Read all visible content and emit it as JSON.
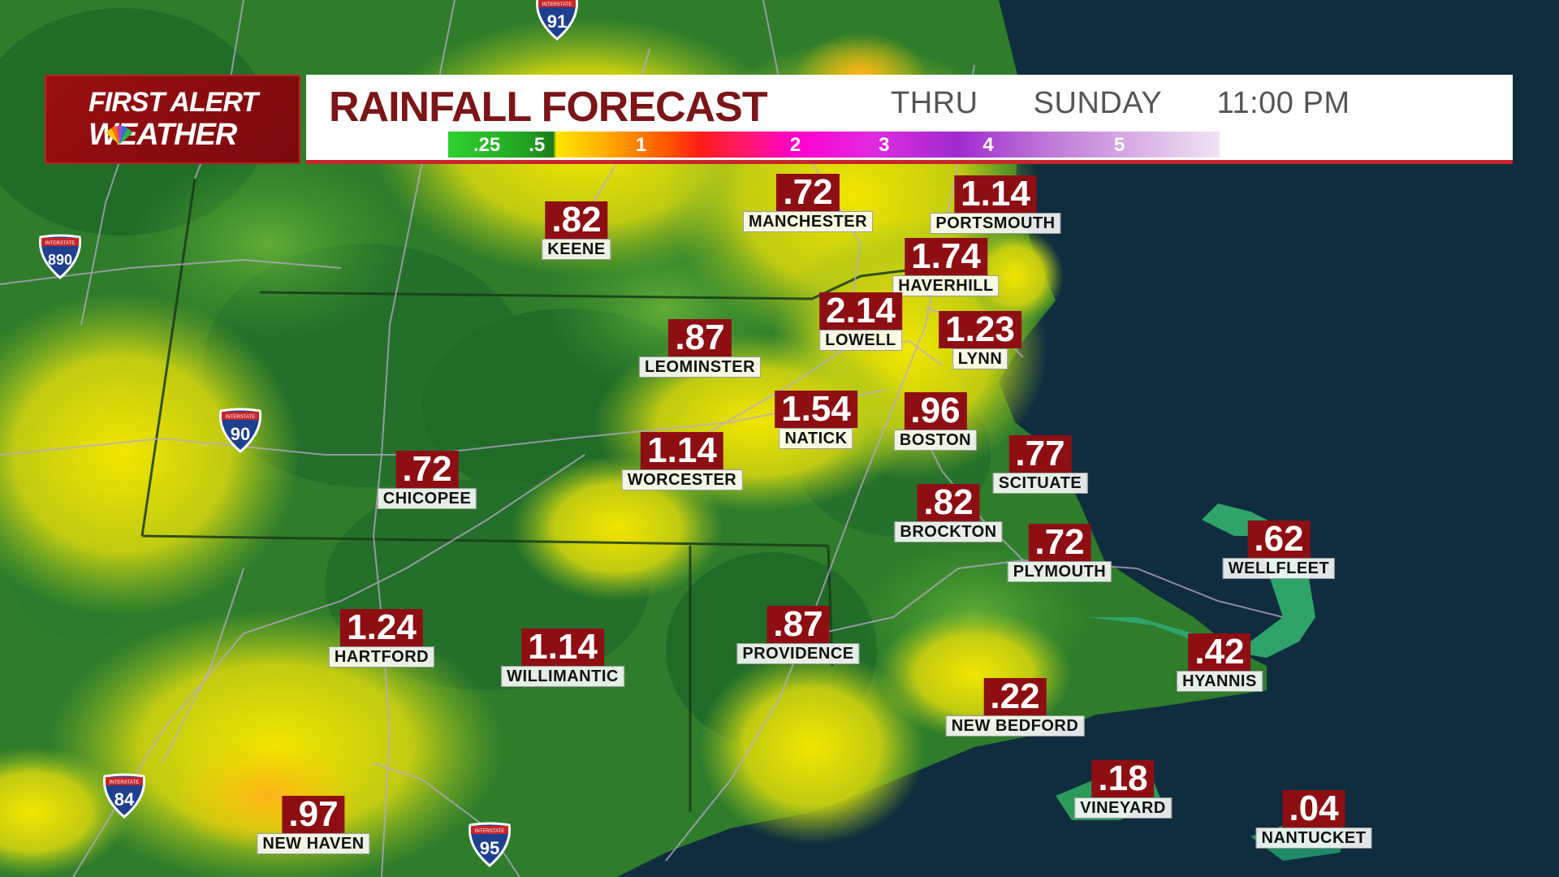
{
  "header": {
    "logo_line1": "FIRST ALERT",
    "logo_line2": "WEATHER",
    "title": "RAINFALL FORECAST",
    "thru_label": "THRU",
    "day": "SUNDAY",
    "time": "11:00 PM",
    "scale_labels": [
      ".25",
      ".5",
      "1",
      "2",
      "3",
      "4",
      "5"
    ]
  },
  "colors": {
    "brand_red": "#8e0f13",
    "header_accent": "#c8252a",
    "ocean": "#0f2d3e",
    "rain_light": "#1f6e22",
    "rain_mid": "#3a9b2a",
    "rain_heavy": "#f0e000"
  },
  "locations": [
    {
      "name": "KEENE",
      "value": ".82"
    },
    {
      "name": "MANCHESTER",
      "value": ".72"
    },
    {
      "name": "PORTSMOUTH",
      "value": "1.14"
    },
    {
      "name": "HAVERHILL",
      "value": "1.74"
    },
    {
      "name": "LOWELL",
      "value": "2.14"
    },
    {
      "name": "LYNN",
      "value": "1.23"
    },
    {
      "name": "LEOMINSTER",
      "value": ".87"
    },
    {
      "name": "NATICK",
      "value": "1.54"
    },
    {
      "name": "BOSTON",
      "value": ".96"
    },
    {
      "name": "WORCESTER",
      "value": "1.14"
    },
    {
      "name": "CHICOPEE",
      "value": ".72"
    },
    {
      "name": "SCITUATE",
      "value": ".77"
    },
    {
      "name": "BROCKTON",
      "value": ".82"
    },
    {
      "name": "PLYMOUTH",
      "value": ".72"
    },
    {
      "name": "WELLFLEET",
      "value": ".62"
    },
    {
      "name": "HARTFORD",
      "value": "1.24"
    },
    {
      "name": "WILLIMANTIC",
      "value": "1.14"
    },
    {
      "name": "PROVIDENCE",
      "value": ".87"
    },
    {
      "name": "HYANNIS",
      "value": ".42"
    },
    {
      "name": "NEW BEDFORD",
      "value": ".22"
    },
    {
      "name": "VINEYARD",
      "value": ".18"
    },
    {
      "name": "NANTUCKET",
      "value": ".04"
    },
    {
      "name": "NEW HAVEN",
      "value": ".97"
    }
  ],
  "interstates": [
    {
      "number": "91",
      "label": "INTERSTATE"
    },
    {
      "number": "890",
      "label": "INTERSTATE"
    },
    {
      "number": "90",
      "label": "INTERSTATE"
    },
    {
      "number": "84",
      "label": "INTERSTATE"
    },
    {
      "number": "95",
      "label": "INTERSTATE"
    }
  ]
}
